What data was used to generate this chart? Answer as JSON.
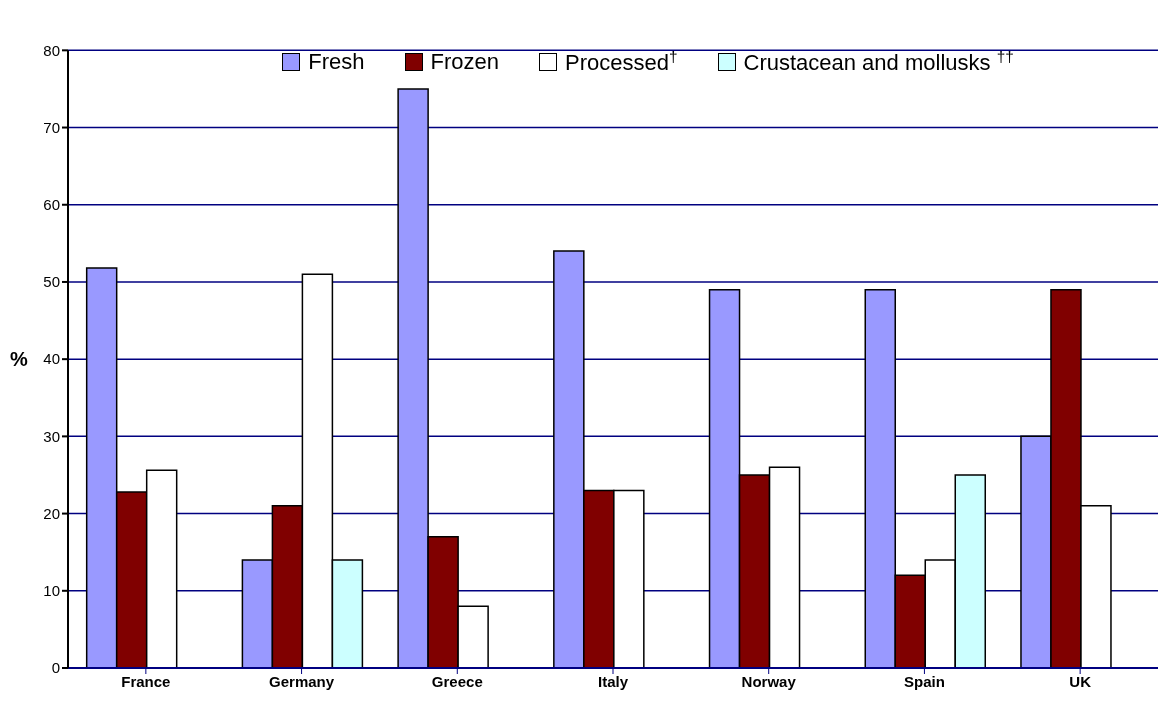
{
  "chart_data": {
    "type": "bar",
    "ylabel": "%",
    "categories": [
      "France",
      "Germany",
      "Greece",
      "Italy",
      "Norway",
      "Spain",
      "UK"
    ],
    "series": [
      {
        "name": "Fresh",
        "color": "#9999ff",
        "values": [
          51.8,
          14,
          75,
          54,
          49,
          49,
          30
        ]
      },
      {
        "name": "Frozen",
        "color": "#800000",
        "values": [
          22.8,
          21,
          17,
          23,
          25,
          12,
          49
        ]
      },
      {
        "name": "Processed$^{†}$",
        "color": "#ffffff",
        "values": [
          25.6,
          51,
          8,
          23,
          26,
          14,
          21
        ]
      },
      {
        "name": "Crustacean and mollusks $^{††}$",
        "color": "#ccffff",
        "values": [
          null,
          14,
          null,
          null,
          null,
          25,
          null
        ]
      }
    ],
    "ylim": [
      0,
      80
    ],
    "yticks": [
      0,
      10,
      20,
      30,
      40,
      50,
      60,
      70,
      80
    ],
    "grid": "y",
    "legend": "top"
  }
}
